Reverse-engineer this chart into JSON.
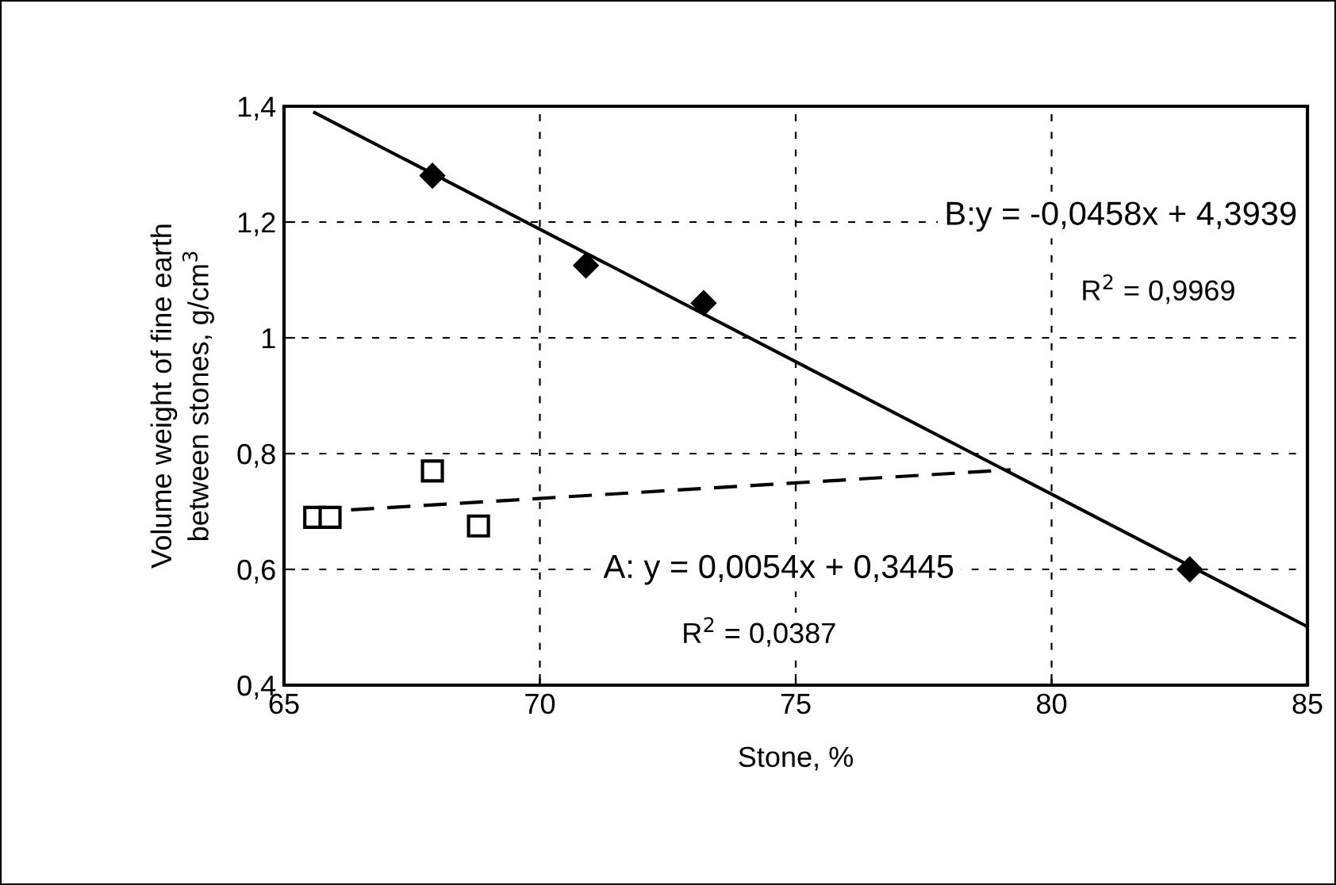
{
  "chart_data": {
    "type": "scatter",
    "xlabel": "Stone, %",
    "ylabel": "Volume weight of fine earth\nbetween stones, g/cm$^{3}$",
    "xlim": [
      65,
      85
    ],
    "xticks": [
      65,
      70,
      75,
      80,
      85
    ],
    "ylim": [
      0.4,
      1.4
    ],
    "yticks": [
      {
        "value": 0.4,
        "label": "0,4"
      },
      {
        "value": 0.6,
        "label": "0,6"
      },
      {
        "value": 0.8,
        "label": "0,8"
      },
      {
        "value": 1,
        "label": "1"
      },
      {
        "value": 1.2,
        "label": "1,2"
      },
      {
        "value": 1.4,
        "label": "1,4"
      }
    ],
    "grid": true,
    "series": [
      {
        "marker": "square",
        "color": "#000000",
        "x": [
          65.6,
          65.9,
          67.9,
          68.8
        ],
        "values": [
          0.69,
          0.69,
          0.77,
          0.675
        ]
      },
      {
        "marker": "diamond",
        "color": "#000000",
        "x": [
          67.9,
          70.9,
          73.2,
          82.7
        ],
        "values": [
          1.28,
          1.125,
          1.06,
          0.6
        ]
      },
      {
        "type": "line",
        "line_style": "dashed",
        "color": "#000000",
        "x": [
          65.6,
          79.2
        ],
        "values": [
          0.699,
          0.772
        ]
      },
      {
        "type": "line",
        "line_style": "solid",
        "color": "#000000",
        "x": [
          65.6,
          85
        ],
        "values": [
          1.389,
          0.501
        ]
      }
    ],
    "annotations": [
      "B:y = -0,0458x + 4,3939",
      "R$^{2}$ = 0,9969",
      "A: y = 0,0054x + 0,3445",
      "R$^{2}$ = 0,0387"
    ]
  }
}
